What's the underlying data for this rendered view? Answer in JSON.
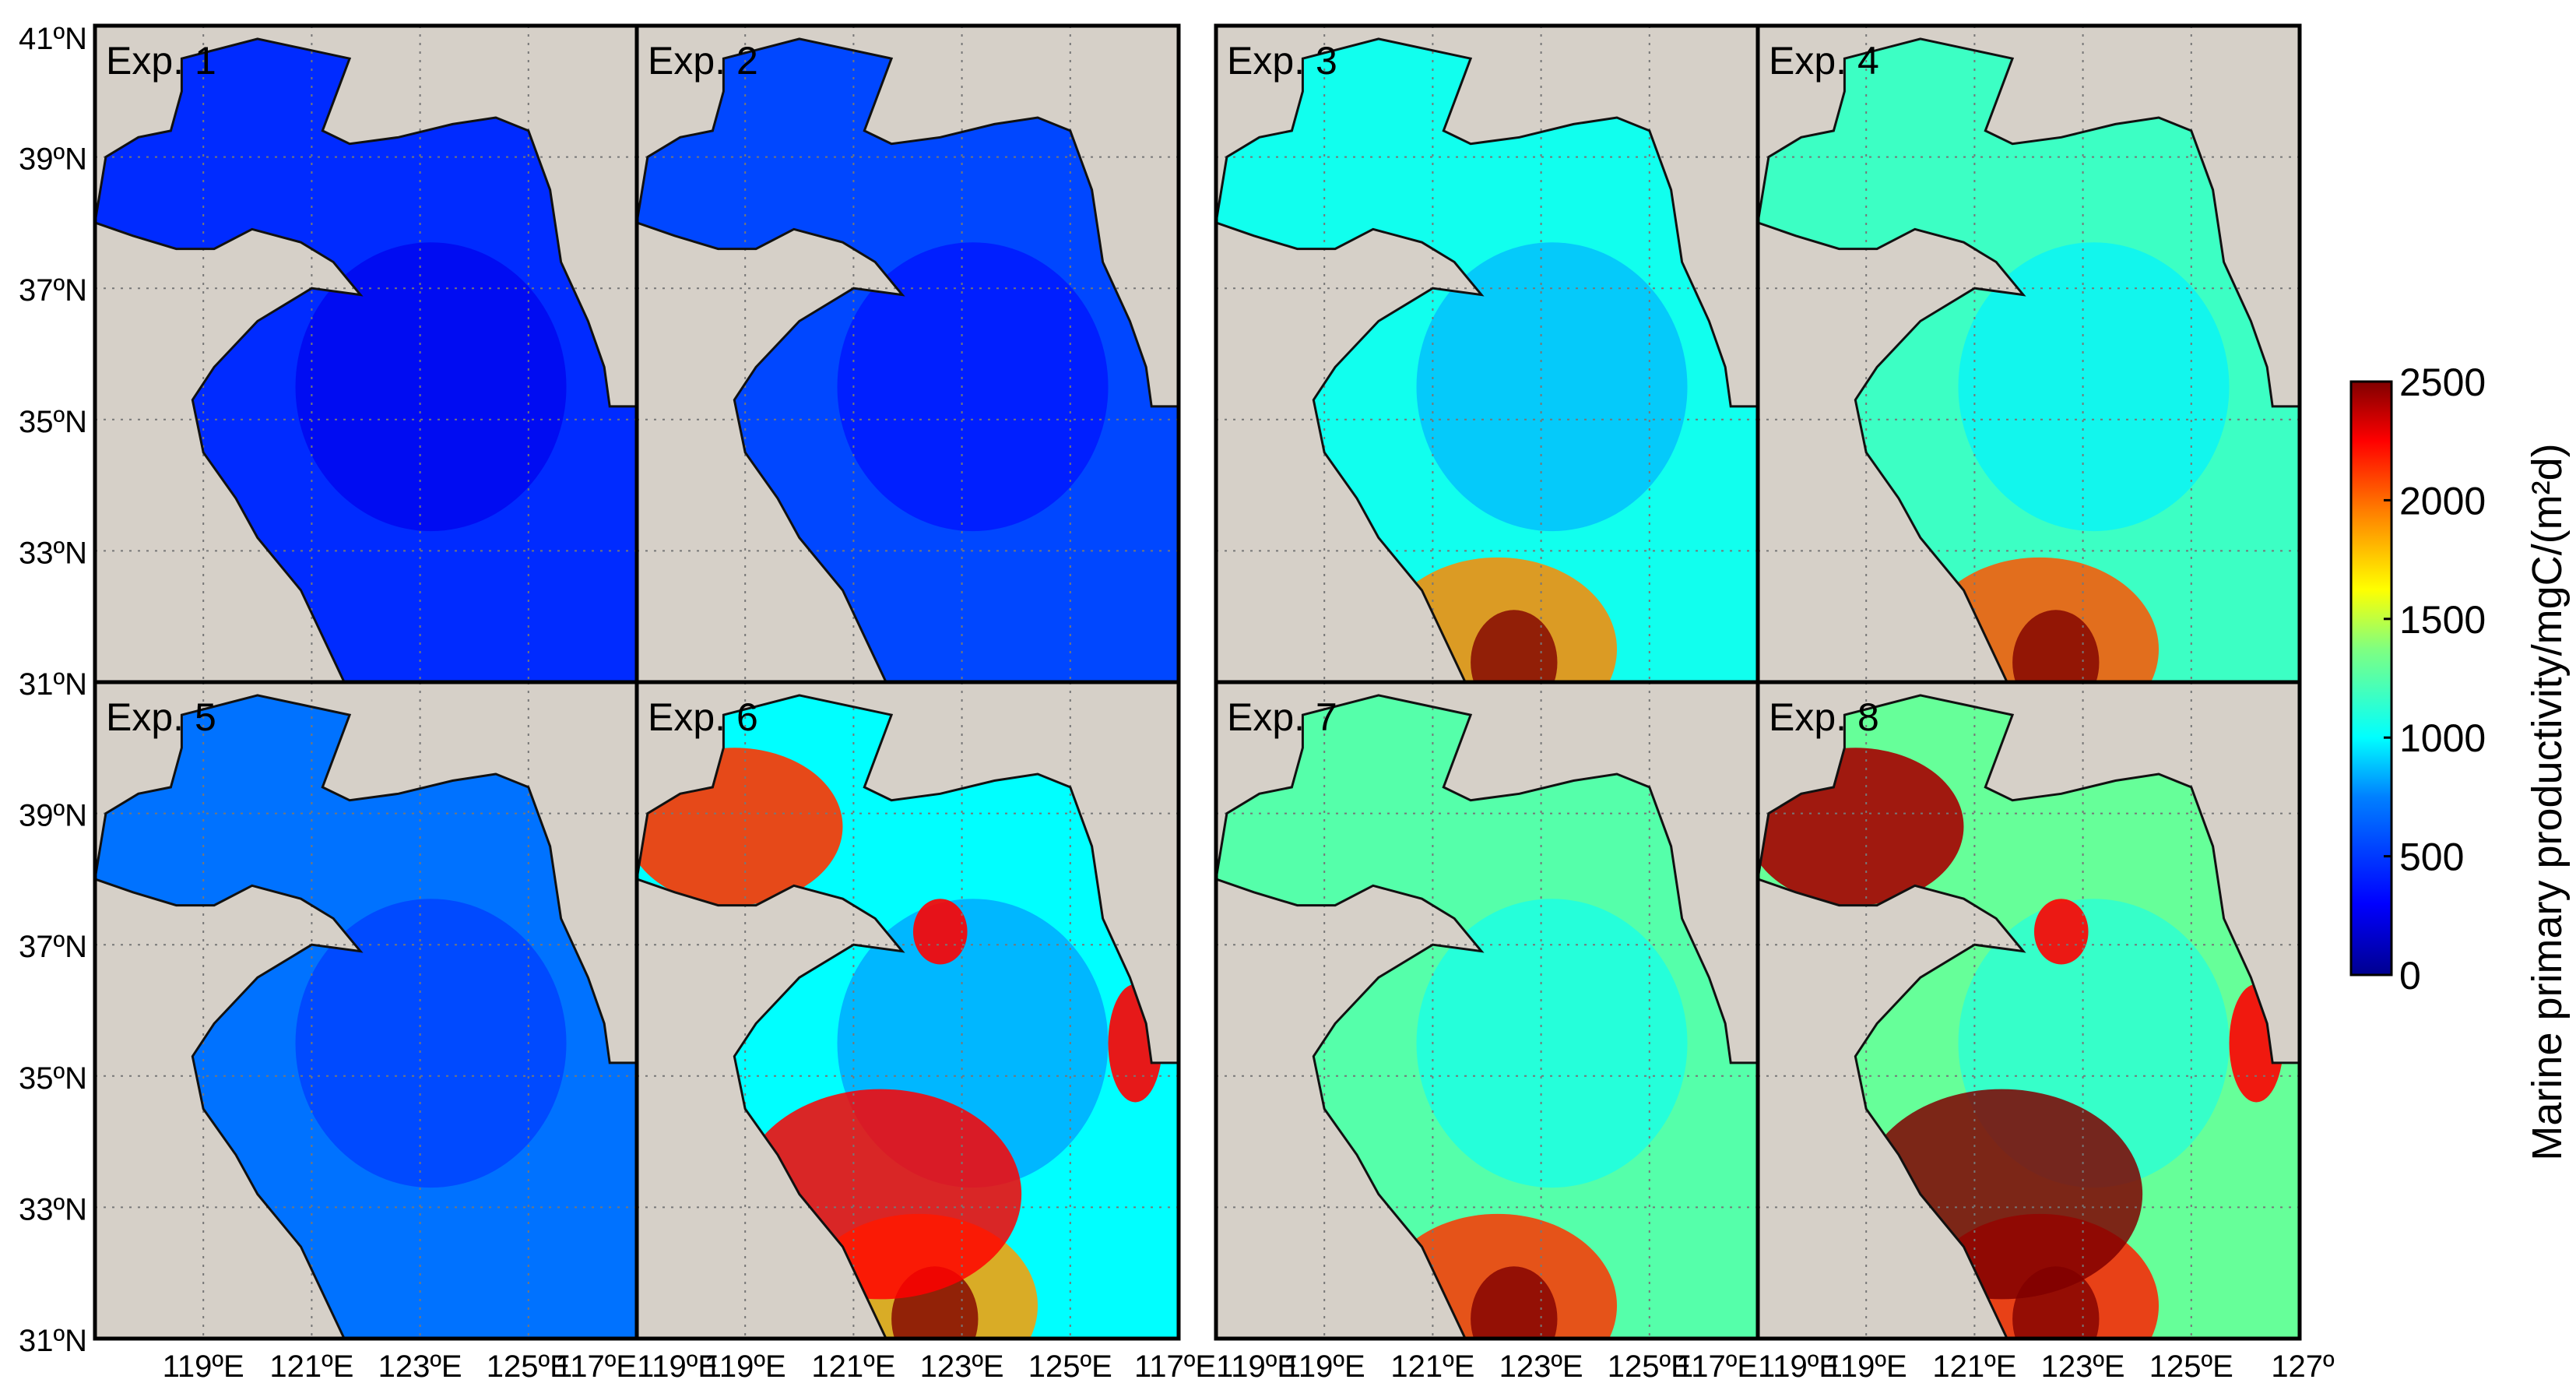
{
  "panels": [
    {
      "label": "Exp. 1",
      "level": 0.18,
      "notes_hi": []
    },
    {
      "label": "Exp. 2",
      "level": 0.22,
      "notes_hi": []
    },
    {
      "label": "Exp. 3",
      "level": 0.42,
      "notes_hi": [
        "south"
      ]
    },
    {
      "label": "Exp. 4",
      "level": 0.47,
      "notes_hi": [
        "south"
      ]
    },
    {
      "label": "Exp. 5",
      "level": 0.28,
      "notes_hi": []
    },
    {
      "label": "Exp. 6",
      "level": 0.4,
      "notes_hi": [
        "bohai",
        "south",
        "coast"
      ]
    },
    {
      "label": "Exp. 7",
      "level": 0.5,
      "notes_hi": [
        "south"
      ]
    },
    {
      "label": "Exp. 8",
      "level": 0.52,
      "notes_hi": [
        "bohai",
        "south",
        "coast"
      ]
    }
  ],
  "lat_labels": [
    "41ºN",
    "39ºN",
    "37ºN",
    "35ºN",
    "33ºN",
    "31ºN"
  ],
  "lon_labels": [
    "119ºE",
    "121ºE",
    "123ºE",
    "125ºE",
    "127ºE"
  ],
  "lon_labels_printed": [
    "119ºE",
    "121ºE",
    "123ºE",
    "125ºE",
    "117ºE119ºE",
    "121ºE",
    "123ºE",
    "125ºE",
    "117ºE119ºE",
    "121ºE",
    "123ºE",
    "125ºE",
    "117ºE119ºE",
    "121ºE",
    "123ºE",
    "125ºE",
    "127º"
  ],
  "colorbar": {
    "title": "Marine primary productivity/mgC/(m²d)",
    "ticks": [
      "2500",
      "2000",
      "1500",
      "1000",
      "500",
      "0"
    ],
    "colors": [
      "#00008f",
      "#0000ff",
      "#0080ff",
      "#00ffff",
      "#80ff80",
      "#ffff00",
      "#ff8000",
      "#ff0000",
      "#800000"
    ]
  },
  "land_color": "#d6d0c8"
}
